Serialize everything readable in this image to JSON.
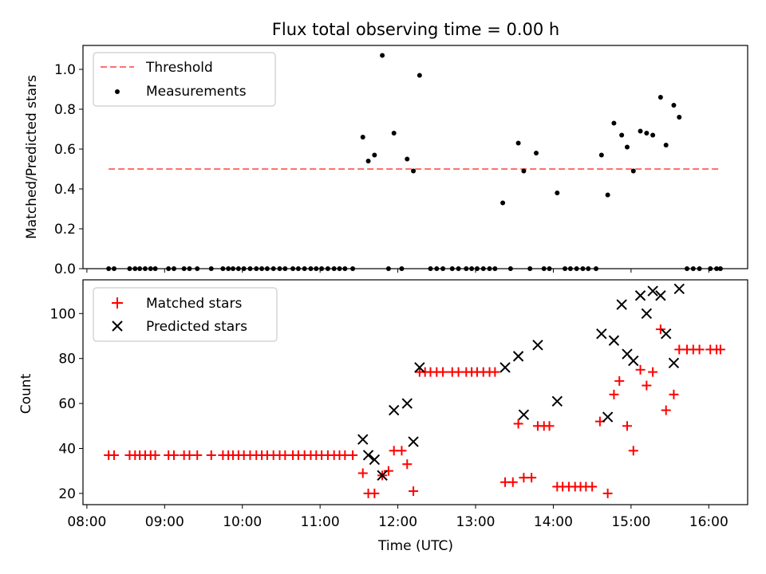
{
  "chart_data": {
    "title": "Flux total observing time = 0.00 h",
    "xlabel": "Time (UTC)",
    "x_unit": "hours UTC",
    "xlim": [
      7.95,
      16.5
    ],
    "xticks": [
      {
        "value": 8,
        "label": "08:00"
      },
      {
        "value": 9,
        "label": "09:00"
      },
      {
        "value": 10,
        "label": "10:00"
      },
      {
        "value": 11,
        "label": "11:00"
      },
      {
        "value": 12,
        "label": "12:00"
      },
      {
        "value": 13,
        "label": "13:00"
      },
      {
        "value": 14,
        "label": "14:00"
      },
      {
        "value": 15,
        "label": "15:00"
      },
      {
        "value": 16,
        "label": "16:00"
      }
    ],
    "top": {
      "type": "scatter",
      "ylabel": "Matched/Predicted stars",
      "ylim": [
        0,
        1.12
      ],
      "yticks": [
        {
          "value": 0.0,
          "label": "0.0"
        },
        {
          "value": 0.2,
          "label": "0.2"
        },
        {
          "value": 0.4,
          "label": "0.4"
        },
        {
          "value": 0.6,
          "label": "0.6"
        },
        {
          "value": 0.8,
          "label": "0.8"
        },
        {
          "value": 1.0,
          "label": "1.0"
        }
      ],
      "legend": {
        "position": "top-left",
        "threshold_label": "Threshold",
        "measurements_label": "Measurements"
      },
      "threshold": {
        "value": 0.5,
        "x_start": 8.28,
        "x_end": 16.15,
        "color": "#ff7070"
      },
      "measurements": {
        "color": "#000000",
        "x": [
          8.28,
          8.35,
          8.55,
          8.62,
          8.68,
          8.75,
          8.82,
          8.88,
          9.05,
          9.12,
          9.25,
          9.32,
          9.42,
          9.6,
          9.75,
          9.82,
          9.88,
          9.95,
          10.02,
          10.1,
          10.18,
          10.25,
          10.32,
          10.4,
          10.48,
          10.55,
          10.65,
          10.72,
          10.8,
          10.88,
          10.95,
          11.02,
          11.1,
          11.18,
          11.25,
          11.32,
          11.42,
          11.55,
          11.62,
          11.7,
          11.8,
          11.88,
          11.95,
          12.05,
          12.12,
          12.2,
          12.28,
          12.42,
          12.5,
          12.58,
          12.7,
          12.78,
          12.88,
          12.95,
          13.02,
          13.1,
          13.18,
          13.25,
          13.35,
          13.45,
          13.55,
          13.62,
          13.7,
          13.78,
          13.88,
          13.95,
          14.05,
          14.15,
          14.22,
          14.3,
          14.38,
          14.45,
          14.55,
          14.62,
          14.7,
          14.78,
          14.88,
          14.95,
          15.03,
          15.12,
          15.2,
          15.28,
          15.38,
          15.45,
          15.55,
          15.62,
          15.72,
          15.8,
          15.88,
          16.02,
          16.1,
          16.15
        ],
        "y": [
          0,
          0,
          0,
          0,
          0,
          0,
          0,
          0,
          0,
          0,
          0,
          0,
          0,
          0,
          0,
          0,
          0,
          0,
          0,
          0,
          0,
          0,
          0,
          0,
          0,
          0,
          0,
          0,
          0,
          0,
          0,
          0,
          0,
          0,
          0,
          0,
          0,
          0.66,
          0.54,
          0.57,
          1.07,
          0,
          0.68,
          0,
          0.55,
          0.49,
          0.97,
          0,
          0,
          0,
          0,
          0,
          0,
          0,
          0,
          0,
          0,
          0,
          0.33,
          0,
          0.63,
          0.49,
          0,
          0.58,
          0,
          0,
          0.38,
          0,
          0,
          0,
          0,
          0,
          0,
          0.57,
          0.37,
          0.73,
          0.67,
          0.61,
          0.49,
          0.69,
          0.68,
          0.67,
          0.86,
          0.62,
          0.82,
          0.76,
          0,
          0,
          0,
          0,
          0,
          0
        ]
      }
    },
    "bottom": {
      "type": "scatter",
      "ylabel": "Count",
      "ylim": [
        15,
        115
      ],
      "yticks": [
        {
          "value": 20,
          "label": "20"
        },
        {
          "value": 40,
          "label": "40"
        },
        {
          "value": 60,
          "label": "60"
        },
        {
          "value": 80,
          "label": "80"
        },
        {
          "value": 100,
          "label": "100"
        }
      ],
      "legend": {
        "position": "top-left",
        "matched_label": "Matched stars",
        "predicted_label": "Predicted stars"
      },
      "matched": {
        "color": "#ff0000",
        "x": [
          8.28,
          8.35,
          8.55,
          8.62,
          8.68,
          8.75,
          8.82,
          8.88,
          9.05,
          9.12,
          9.25,
          9.32,
          9.42,
          9.6,
          9.75,
          9.82,
          9.88,
          9.95,
          10.02,
          10.1,
          10.18,
          10.25,
          10.32,
          10.4,
          10.48,
          10.55,
          10.65,
          10.72,
          10.8,
          10.88,
          10.95,
          11.02,
          11.1,
          11.18,
          11.25,
          11.32,
          11.42,
          11.55,
          11.62,
          11.7,
          11.8,
          11.88,
          11.95,
          12.05,
          12.12,
          12.2,
          12.28,
          12.35,
          12.42,
          12.5,
          12.58,
          12.7,
          12.78,
          12.88,
          12.95,
          13.02,
          13.1,
          13.18,
          13.25,
          13.38,
          13.48,
          13.55,
          13.62,
          13.72,
          13.8,
          13.88,
          13.95,
          14.05,
          14.12,
          14.2,
          14.28,
          14.35,
          14.42,
          14.5,
          14.6,
          14.7,
          14.78,
          14.85,
          14.95,
          15.03,
          15.12,
          15.2,
          15.28,
          15.38,
          15.45,
          15.55,
          15.62,
          15.72,
          15.8,
          15.88,
          16.02,
          16.1,
          16.15
        ],
        "y": [
          37,
          37,
          37,
          37,
          37,
          37,
          37,
          37,
          37,
          37,
          37,
          37,
          37,
          37,
          37,
          37,
          37,
          37,
          37,
          37,
          37,
          37,
          37,
          37,
          37,
          37,
          37,
          37,
          37,
          37,
          37,
          37,
          37,
          37,
          37,
          37,
          37,
          29,
          20,
          20,
          28,
          30,
          39,
          39,
          33,
          21,
          74,
          74,
          74,
          74,
          74,
          74,
          74,
          74,
          74,
          74,
          74,
          74,
          74,
          25,
          25,
          51,
          27,
          27,
          50,
          50,
          50,
          23,
          23,
          23,
          23,
          23,
          23,
          23,
          52,
          20,
          64,
          70,
          50,
          39,
          75,
          68,
          74,
          93,
          57,
          64,
          84,
          84,
          84,
          84,
          84,
          84,
          84
        ]
      },
      "predicted": {
        "color": "#000000",
        "x": [
          11.55,
          11.62,
          11.7,
          11.8,
          11.95,
          12.12,
          12.2,
          12.28,
          13.38,
          13.55,
          13.62,
          13.8,
          14.05,
          14.62,
          14.7,
          14.78,
          14.88,
          14.95,
          15.03,
          15.12,
          15.2,
          15.28,
          15.38,
          15.45,
          15.55,
          15.62
        ],
        "y": [
          44,
          37,
          35,
          28,
          57,
          60,
          43,
          76,
          76,
          81,
          55,
          86,
          61,
          91,
          54,
          88,
          104,
          82,
          79,
          108,
          100,
          110,
          108,
          91,
          78,
          111
        ]
      }
    }
  }
}
